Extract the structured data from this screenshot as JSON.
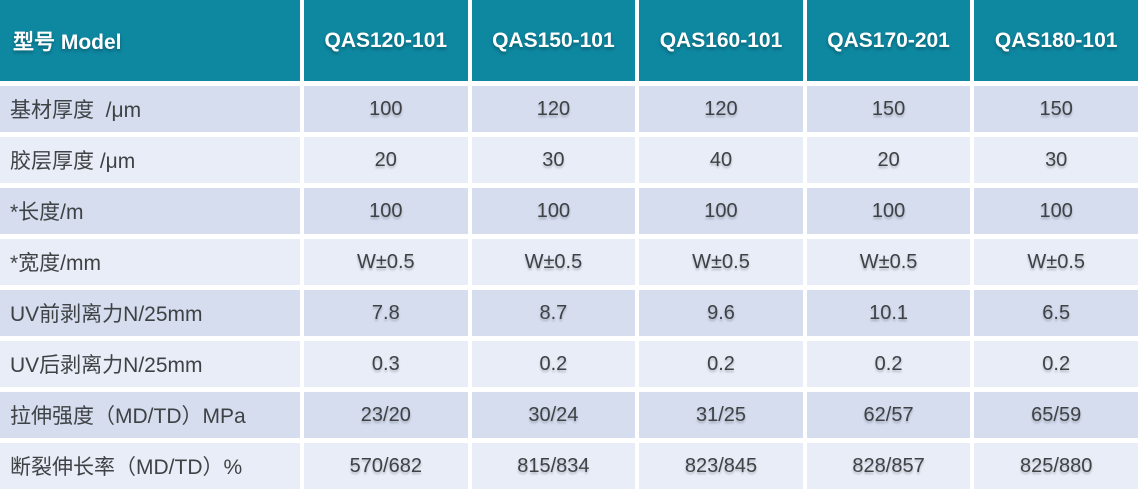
{
  "colors": {
    "header_bg": "#0e87a0",
    "header_text": "#ffffff",
    "row_dark": "#d5ddee",
    "row_light": "#e9edf7",
    "text": "#3f4245"
  },
  "table": {
    "header": [
      "型号 Model",
      "QAS120-101",
      "QAS150-101",
      "QAS160-101",
      "QAS170-201",
      "QAS180-101"
    ],
    "rows": [
      {
        "label": "基材厚度  /μm",
        "values": [
          "100",
          "120",
          "120",
          "150",
          "150"
        ]
      },
      {
        "label": "胶层厚度 /μm",
        "values": [
          "20",
          "30",
          "40",
          "20",
          "30"
        ]
      },
      {
        "label": "*长度/m",
        "values": [
          "100",
          "100",
          "100",
          "100",
          "100"
        ]
      },
      {
        "label": "*宽度/mm",
        "values": [
          "W±0.5",
          "W±0.5",
          "W±0.5",
          "W±0.5",
          "W±0.5"
        ]
      },
      {
        "label": "UV前剥离力N/25mm",
        "values": [
          "7.8",
          "8.7",
          "9.6",
          "10.1",
          "6.5"
        ]
      },
      {
        "label": "UV后剥离力N/25mm",
        "values": [
          "0.3",
          "0.2",
          "0.2",
          "0.2",
          "0.2"
        ]
      },
      {
        "label": "拉伸强度（MD/TD）MPa",
        "values": [
          "23/20",
          "30/24",
          "31/25",
          "62/57",
          "65/59"
        ]
      },
      {
        "label": "断裂伸长率（MD/TD）%",
        "values": [
          "570/682",
          "815/834",
          "823/845",
          "828/857",
          "825/880"
        ]
      }
    ]
  }
}
